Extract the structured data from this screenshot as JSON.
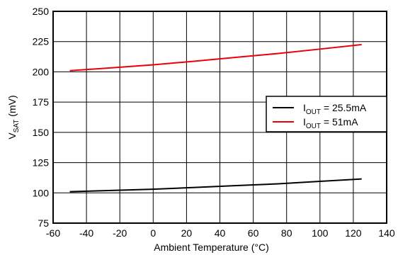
{
  "chart_data": {
    "type": "line",
    "xlabel": "Ambient Temperature (°C)",
    "ylabel_main": "V",
    "ylabel_sub": "SAT",
    "ylabel_unit": " (mV)",
    "xlim": [
      -60,
      140
    ],
    "ylim": [
      75,
      250
    ],
    "xticks": [
      -60,
      -40,
      -20,
      0,
      20,
      40,
      60,
      80,
      100,
      120,
      140
    ],
    "yticks": [
      75,
      100,
      125,
      150,
      175,
      200,
      225,
      250
    ],
    "grid": true,
    "legend_position": "center-right",
    "series": [
      {
        "name_main": "I",
        "name_sub": "OUT",
        "name_rest": " = 25.5mA",
        "color": "#000000",
        "x": [
          -50,
          -25,
          0,
          25,
          50,
          75,
          100,
          125
        ],
        "y": [
          101,
          102,
          103,
          104.5,
          106,
          107.5,
          109.5,
          111.5
        ]
      },
      {
        "name_main": "I",
        "name_sub": "OUT",
        "name_rest": " = 51mA",
        "color": "#e8000b",
        "x": [
          -50,
          -25,
          0,
          25,
          50,
          75,
          100,
          125
        ],
        "y": [
          201,
          203.3,
          205.8,
          208.8,
          212,
          215.2,
          218.8,
          222.5
        ]
      }
    ]
  }
}
